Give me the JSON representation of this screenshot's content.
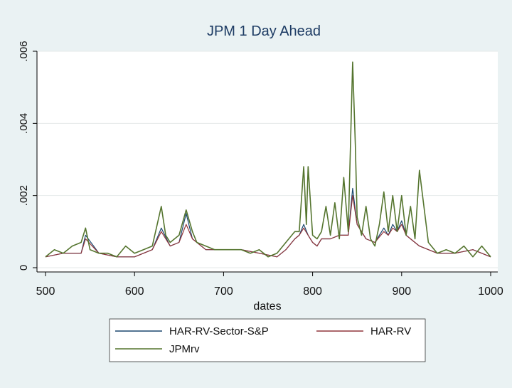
{
  "chart_data": {
    "type": "line",
    "title": "JPM 1 Day Ahead",
    "xlabel": "dates",
    "ylabel": "",
    "xlim": [
      500,
      1000
    ],
    "ylim": [
      0,
      0.006
    ],
    "x_ticks": [
      500,
      600,
      700,
      800,
      900,
      1000
    ],
    "x_tick_labels": [
      "500",
      "600",
      "700",
      "800",
      "900",
      "1000"
    ],
    "y_ticks": [
      0,
      0.002,
      0.004,
      0.006
    ],
    "y_tick_labels": [
      "0",
      ".002",
      ".004",
      ".006"
    ],
    "grid": true,
    "legend_position": "bottom",
    "series": [
      {
        "name": "HAR-RV-Sector-S&P",
        "color": "#1a476f",
        "x": [
          500,
          520,
          540,
          545,
          560,
          580,
          600,
          620,
          630,
          640,
          650,
          658,
          665,
          680,
          700,
          720,
          740,
          760,
          770,
          780,
          785,
          790,
          795,
          800,
          805,
          810,
          820,
          830,
          840,
          845,
          850,
          860,
          870,
          880,
          885,
          890,
          895,
          900,
          905,
          910,
          920,
          940,
          960,
          980,
          1000
        ],
        "y": [
          0.0003,
          0.0004,
          0.0004,
          0.0009,
          0.0004,
          0.0003,
          0.0003,
          0.0005,
          0.0011,
          0.0006,
          0.0007,
          0.0015,
          0.0008,
          0.0005,
          0.0005,
          0.0005,
          0.0004,
          0.0003,
          0.0005,
          0.0008,
          0.0009,
          0.0012,
          0.0009,
          0.0007,
          0.0006,
          0.0008,
          0.0008,
          0.0009,
          0.0009,
          0.0022,
          0.0012,
          0.0008,
          0.0007,
          0.0011,
          0.0009,
          0.0012,
          0.001,
          0.0013,
          0.0009,
          0.0008,
          0.0006,
          0.0004,
          0.0004,
          0.0005,
          0.0003
        ]
      },
      {
        "name": "HAR-RV",
        "color": "#90353b",
        "x": [
          500,
          520,
          540,
          545,
          560,
          580,
          600,
          620,
          630,
          640,
          650,
          658,
          665,
          680,
          700,
          720,
          740,
          760,
          770,
          780,
          785,
          790,
          795,
          800,
          805,
          810,
          820,
          830,
          840,
          845,
          850,
          860,
          870,
          880,
          885,
          890,
          895,
          900,
          905,
          910,
          920,
          940,
          960,
          980,
          1000
        ],
        "y": [
          0.0003,
          0.0004,
          0.0004,
          0.0008,
          0.0004,
          0.0003,
          0.0003,
          0.0005,
          0.001,
          0.0006,
          0.0007,
          0.0012,
          0.0008,
          0.0005,
          0.0005,
          0.0005,
          0.0004,
          0.0003,
          0.0005,
          0.0008,
          0.0009,
          0.0011,
          0.0009,
          0.0007,
          0.0006,
          0.0008,
          0.0008,
          0.0009,
          0.0009,
          0.002,
          0.0012,
          0.0008,
          0.0007,
          0.001,
          0.0009,
          0.0011,
          0.001,
          0.0012,
          0.0009,
          0.0008,
          0.0006,
          0.0004,
          0.0004,
          0.0005,
          0.0003
        ]
      },
      {
        "name": "JPMrv",
        "color": "#55752f",
        "x": [
          500,
          510,
          520,
          530,
          540,
          545,
          550,
          560,
          570,
          580,
          590,
          600,
          610,
          620,
          630,
          635,
          640,
          650,
          658,
          665,
          670,
          680,
          690,
          700,
          710,
          720,
          730,
          740,
          750,
          760,
          770,
          780,
          785,
          790,
          793,
          795,
          800,
          805,
          810,
          815,
          820,
          825,
          830,
          835,
          840,
          845,
          848,
          850,
          855,
          860,
          865,
          870,
          875,
          880,
          885,
          890,
          895,
          900,
          905,
          910,
          915,
          920,
          930,
          940,
          950,
          960,
          970,
          980,
          990,
          1000
        ],
        "y": [
          0.0003,
          0.0005,
          0.0004,
          0.0006,
          0.0007,
          0.0011,
          0.0005,
          0.0004,
          0.0004,
          0.0003,
          0.0006,
          0.0004,
          0.0005,
          0.0006,
          0.0017,
          0.0009,
          0.0007,
          0.0009,
          0.0016,
          0.001,
          0.0007,
          0.0006,
          0.0005,
          0.0005,
          0.0005,
          0.0005,
          0.0004,
          0.0005,
          0.0003,
          0.0004,
          0.0007,
          0.001,
          0.001,
          0.0028,
          0.0012,
          0.0028,
          0.0009,
          0.0008,
          0.001,
          0.0017,
          0.0009,
          0.0018,
          0.0008,
          0.0025,
          0.001,
          0.0057,
          0.0034,
          0.0014,
          0.0009,
          0.0017,
          0.0008,
          0.0006,
          0.0012,
          0.0021,
          0.001,
          0.002,
          0.001,
          0.002,
          0.0009,
          0.0017,
          0.0008,
          0.0027,
          0.0007,
          0.0004,
          0.0005,
          0.0004,
          0.0006,
          0.0003,
          0.0006,
          0.0003
        ]
      }
    ]
  }
}
